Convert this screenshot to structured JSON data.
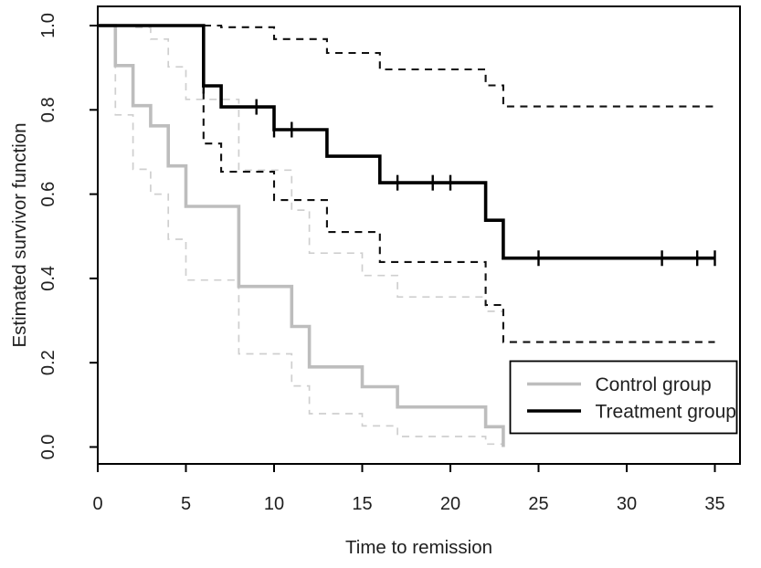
{
  "figure": {
    "background": "#ffffff",
    "text_color": "#1f1f1f"
  },
  "chart_data": {
    "type": "line",
    "subtype": "kaplan-meier-step-survival",
    "title": "",
    "xlabel": "Time to remission",
    "ylabel": "Estimated survivor function",
    "xlim": [
      0,
      36.4
    ],
    "ylim": [
      -0.04,
      1.04
    ],
    "x_ticks": [
      "0",
      "5",
      "10",
      "15",
      "20",
      "25",
      "30",
      "35"
    ],
    "y_ticks": [
      "0.0",
      "0.2",
      "0.4",
      "0.6",
      "0.8",
      "1.0"
    ],
    "grid": false,
    "legend": {
      "position": "bottom-right",
      "entries": [
        {
          "label": "Control group",
          "color": "#bdbdbd",
          "line_style": "solid"
        },
        {
          "label": "Treatment group",
          "color": "#000000",
          "line_style": "solid"
        }
      ]
    },
    "series": [
      {
        "name": "control-ci-upper",
        "label": "Control group upper 95% CI",
        "role": "confidence-band",
        "color": "#cfcfcf",
        "width": 1.7,
        "dashed": true,
        "steps": [
          [
            0,
            1.0
          ],
          [
            2,
            0.995
          ],
          [
            3,
            0.968
          ],
          [
            4,
            0.902
          ],
          [
            5,
            0.825
          ],
          [
            8,
            0.657
          ],
          [
            11,
            0.562
          ],
          [
            12,
            0.46
          ],
          [
            15,
            0.407
          ],
          [
            17,
            0.356
          ],
          [
            22,
            0.322
          ]
        ],
        "end_time": 23
      },
      {
        "name": "control-ci-lower",
        "label": "Control group lower 95% CI",
        "role": "confidence-band",
        "color": "#cfcfcf",
        "width": 1.7,
        "dashed": true,
        "steps": [
          [
            0,
            1.0
          ],
          [
            1,
            0.788
          ],
          [
            2,
            0.659
          ],
          [
            3,
            0.6
          ],
          [
            4,
            0.493
          ],
          [
            5,
            0.396
          ],
          [
            8,
            0.221
          ],
          [
            11,
            0.145
          ],
          [
            12,
            0.079
          ],
          [
            15,
            0.05
          ],
          [
            17,
            0.025
          ],
          [
            22,
            0.007
          ]
        ],
        "end_time": 23
      },
      {
        "name": "control-km",
        "label": "Control group",
        "role": "estimate",
        "color": "#bdbdbd",
        "width": 3.6,
        "dashed": false,
        "steps": [
          [
            0,
            1.0
          ],
          [
            1,
            0.905
          ],
          [
            2,
            0.81
          ],
          [
            3,
            0.762
          ],
          [
            4,
            0.667
          ],
          [
            5,
            0.571
          ],
          [
            8,
            0.381
          ],
          [
            11,
            0.286
          ],
          [
            12,
            0.19
          ],
          [
            15,
            0.143
          ],
          [
            17,
            0.095
          ],
          [
            22,
            0.048
          ],
          [
            23,
            0.0
          ]
        ],
        "end_time": 23
      },
      {
        "name": "treatment-ci-upper",
        "label": "Treatment group upper 95% CI",
        "role": "confidence-band",
        "color": "#111111",
        "width": 2.1,
        "dashed": true,
        "steps": [
          [
            0,
            1.0
          ],
          [
            7,
            0.996
          ],
          [
            10,
            0.968
          ],
          [
            13,
            0.935
          ],
          [
            16,
            0.896
          ],
          [
            22,
            0.858
          ],
          [
            23,
            0.808
          ]
        ],
        "end_time": 35
      },
      {
        "name": "treatment-ci-lower",
        "label": "Treatment group lower 95% CI",
        "role": "confidence-band",
        "color": "#111111",
        "width": 2.1,
        "dashed": true,
        "steps": [
          [
            0,
            1.0
          ],
          [
            6,
            0.72
          ],
          [
            7,
            0.653
          ],
          [
            10,
            0.586
          ],
          [
            13,
            0.51
          ],
          [
            16,
            0.439
          ],
          [
            22,
            0.337
          ],
          [
            23,
            0.249
          ]
        ],
        "end_time": 35
      },
      {
        "name": "treatment-km",
        "label": "Treatment group",
        "role": "estimate",
        "color": "#000000",
        "width": 3.6,
        "dashed": false,
        "steps": [
          [
            0,
            1.0
          ],
          [
            6,
            0.857
          ],
          [
            7,
            0.807
          ],
          [
            10,
            0.753
          ],
          [
            13,
            0.69
          ],
          [
            16,
            0.627
          ],
          [
            22,
            0.538
          ],
          [
            23,
            0.448
          ]
        ],
        "end_time": 35,
        "censor_marks": [
          [
            6,
            0.857
          ],
          [
            9,
            0.807
          ],
          [
            10,
            0.753
          ],
          [
            11,
            0.753
          ],
          [
            17,
            0.627
          ],
          [
            19,
            0.627
          ],
          [
            20,
            0.627
          ],
          [
            25,
            0.448
          ],
          [
            32,
            0.448
          ],
          [
            34,
            0.448
          ],
          [
            35,
            0.448
          ]
        ]
      }
    ]
  }
}
